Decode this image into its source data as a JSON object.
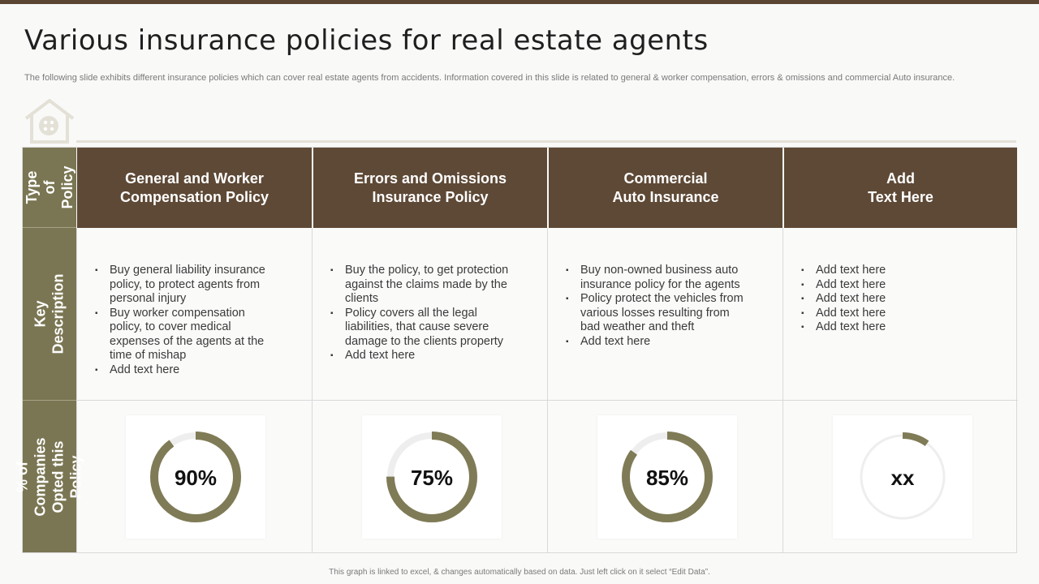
{
  "slide": {
    "title": "Various insurance policies for real estate agents",
    "subtitle": "The following slide exhibits different insurance policies which can cover real estate agents from accidents. Information covered in this slide is related to general & worker compensation, errors & omissions and commercial Auto insurance.",
    "footer": "This graph is linked to excel, & changes automatically based on data. Just left click on it select “Edit Data”.",
    "house_icon": "house-icon"
  },
  "rows": {
    "type": "Type\nof Policy",
    "description": "Key\nDescription",
    "percent": "% of Companies\nOpted this Policy"
  },
  "columns": [
    {
      "header": "General and Worker\nCompensation Policy",
      "bullets": [
        "Buy general liability insurance policy, to protect agents from personal injury",
        "Buy worker compensation policy, to cover medical expenses of the agents at the time of mishap",
        "Add text here"
      ]
    },
    {
      "header": "Errors and Omissions\nInsurance Policy",
      "bullets": [
        "Buy the policy, to get protection against the claims made by the clients",
        "Policy covers all the legal liabilities, that cause severe damage to the clients property",
        "Add text here"
      ]
    },
    {
      "header": "Commercial\nAuto Insurance",
      "bullets": [
        "Buy non-owned business auto insurance policy for the agents",
        "Policy protect the vehicles from various losses resulting from bad weather and theft",
        "Add text here"
      ]
    },
    {
      "header": "Add\nText Here",
      "bullets": [
        "Add text here",
        "Add text here",
        "Add text here",
        "Add text here",
        "Add text here"
      ]
    }
  ],
  "chart_data": {
    "type": "pie",
    "variant": "donut",
    "categories": [
      "General and Worker Compensation Policy",
      "Errors and Omissions Insurance Policy",
      "Commercial Auto Insurance",
      "Add Text Here"
    ],
    "values": [
      90,
      75,
      85,
      10
    ],
    "labels": [
      "90%",
      "75%",
      "85%",
      "xx"
    ],
    "colors": {
      "fill": "#7f7b56",
      "track": "#eeeeee"
    }
  }
}
